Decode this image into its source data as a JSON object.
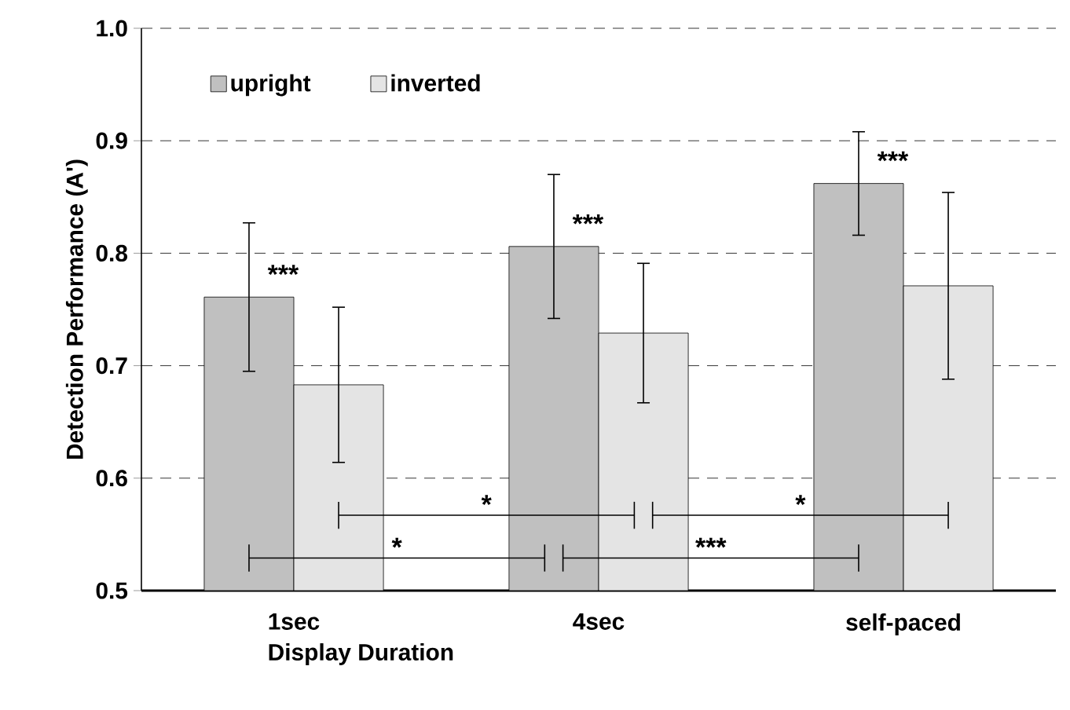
{
  "chart_data": {
    "type": "bar",
    "xlabel": "Display Duration",
    "ylabel": "Detection Performance (A')",
    "categories": [
      "1sec",
      "4sec",
      "self-paced"
    ],
    "series": [
      {
        "name": "upright",
        "color": "#c0c0c0",
        "values": [
          0.761,
          0.806,
          0.862
        ],
        "errors": [
          0.066,
          0.064,
          0.046
        ]
      },
      {
        "name": "inverted",
        "color": "#e4e4e4",
        "values": [
          0.683,
          0.729,
          0.771
        ],
        "errors": [
          0.069,
          0.062,
          0.083
        ]
      }
    ],
    "ylim": [
      0.5,
      1.0
    ],
    "yticks": [
      {
        "value": 0.5,
        "label": "0.5"
      },
      {
        "value": 0.6,
        "label": "0.6"
      },
      {
        "value": 0.7,
        "label": "0.7"
      },
      {
        "value": 0.8,
        "label": "0.8"
      },
      {
        "value": 0.9,
        "label": "0.9"
      },
      {
        "value": 1.0,
        "label": "1.0"
      }
    ],
    "grid": "y",
    "legend": "top left",
    "annotations": [
      "***",
      "***",
      "***",
      "*",
      "*",
      "*",
      "***"
    ]
  }
}
